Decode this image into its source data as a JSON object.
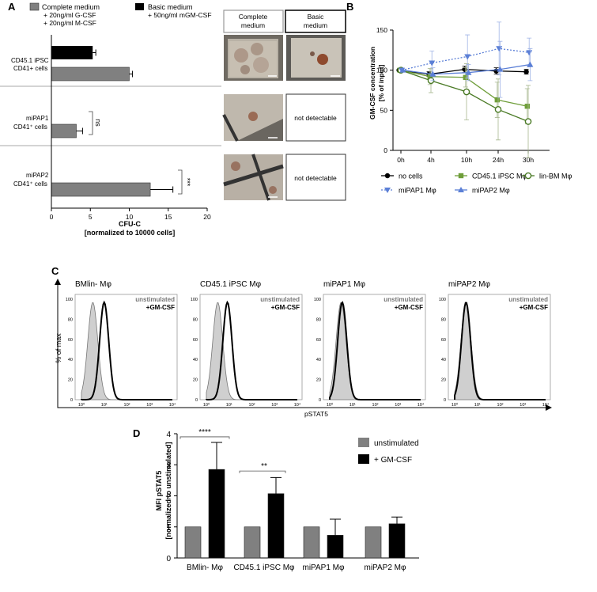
{
  "panels": {
    "A": "A",
    "B": "B",
    "C": "C",
    "D": "D"
  },
  "panel_a": {
    "legend": [
      {
        "label": "Complete medium",
        "sub1": "+ 20ng/ml G-CSF",
        "sub2": "+ 20ng/ml M-CSF",
        "color": "#808080"
      },
      {
        "label": "Basic medium",
        "sub1": "+ 50ng/ml mGM-CSF",
        "sub2": "",
        "color": "#000000"
      }
    ],
    "group_labels": [
      {
        "line1": "CD45.1 iPSC",
        "line2": "CD41+ cells"
      },
      {
        "line1": "miPAP1",
        "line2": "CD41⁺ cells"
      },
      {
        "line1": "miPAP2",
        "line2": "CD41⁺ cells"
      }
    ],
    "significance": [
      "ns",
      "***"
    ],
    "micro_headers": [
      "Complete medium",
      "Basic medium"
    ],
    "not_detectable": "not detectable"
  },
  "panel_c": {
    "titles": [
      "BMlin- Mφ",
      "CD45.1 iPSC Mφ",
      "miPAP1 Mφ",
      "miPAP2 Mφ"
    ],
    "legend_unstim": "unstimulated",
    "legend_stim": "+GM-CSF",
    "ylabel": "% of max",
    "xlabel": "pSTAT5",
    "yticks": [
      "0",
      "20",
      "40",
      "60",
      "80",
      "100"
    ],
    "xticks": [
      "10⁰",
      "10¹",
      "10²",
      "10³",
      "10⁴"
    ]
  },
  "chart_data": [
    {
      "type": "bar",
      "orientation": "horizontal",
      "categories": [
        "CD45.1 iPSC CD41+ cells",
        "miPAP1 CD41⁺ cells",
        "miPAP2 CD41⁺ cells"
      ],
      "series": [
        {
          "name": "Complete medium",
          "values": [
            10.0,
            3.2,
            12.7
          ],
          "errors": [
            0.4,
            0.8,
            2.9
          ]
        },
        {
          "name": "Basic medium",
          "values": [
            5.3,
            null,
            null
          ],
          "errors": [
            0.4,
            null,
            null
          ]
        }
      ],
      "xlabel": "CFU-C\n[normalized to 10000 cells]",
      "xlim": [
        0,
        20
      ],
      "xticks": [
        0,
        5,
        10,
        15,
        20
      ]
    },
    {
      "type": "line",
      "x": [
        "0h",
        "4h",
        "10h",
        "24h",
        "30h"
      ],
      "series": [
        {
          "name": "no cells",
          "values": [
            100,
            95,
            101,
            99,
            98
          ],
          "errors": [
            0,
            3,
            4,
            4,
            3
          ],
          "color": "#000000",
          "marker": "circle-filled"
        },
        {
          "name": "CD45.1 iPSC Mφ",
          "values": [
            100,
            92,
            91,
            63,
            55
          ],
          "errors": [
            0,
            10,
            12,
            22,
            22
          ],
          "color": "#6f9e3a",
          "marker": "square"
        },
        {
          "name": "lin-BM Mφ",
          "values": [
            100,
            87,
            73,
            51,
            36
          ],
          "errors": [
            0,
            15,
            35,
            38,
            45
          ],
          "color": "#4a7a25",
          "marker": "circle-open"
        },
        {
          "name": "miPAP1 Mφ",
          "values": [
            100,
            109,
            117,
            127,
            122
          ],
          "errors": [
            0,
            15,
            27,
            33,
            18
          ],
          "color": "#5b7fd6",
          "marker": "triangle-down",
          "dashed": true
        },
        {
          "name": "miPAP2 Mφ",
          "values": [
            100,
            95,
            97,
            101,
            107
          ],
          "errors": [
            0,
            8,
            10,
            35,
            20
          ],
          "color": "#5b7fd6",
          "marker": "triangle-up"
        }
      ],
      "ylabel": "GM-CSF concentration\n[% of input]",
      "ylim": [
        0,
        150
      ],
      "yticks": [
        0,
        50,
        100,
        150
      ]
    },
    {
      "type": "bar",
      "categories": [
        "BMlin- Mφ",
        "CD45.1 iPSC Mφ",
        "miPAP1 Mφ",
        "miPAP2 Mφ"
      ],
      "series": [
        {
          "name": "unstimulated",
          "values": [
            1.0,
            1.0,
            1.0,
            1.0
          ],
          "errors": [
            0,
            0,
            0,
            0
          ],
          "color": "#808080"
        },
        {
          "name": "+ GM-CSF",
          "values": [
            2.85,
            2.07,
            0.73,
            1.1
          ],
          "errors": [
            0.87,
            0.52,
            0.52,
            0.22
          ],
          "color": "#000000"
        }
      ],
      "ylabel": "MFI pSTAT5\n[normalized to unstimulated]",
      "ylim": [
        0,
        4
      ],
      "yticks": [
        0,
        1,
        2,
        3,
        4
      ],
      "significance": [
        "****",
        "**"
      ]
    }
  ]
}
